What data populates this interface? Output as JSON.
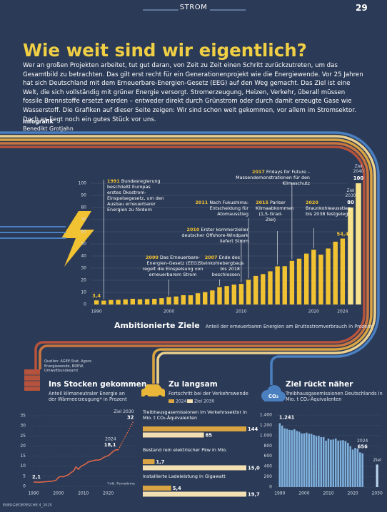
{
  "header": {
    "section": "STROM",
    "page": "29"
  },
  "title": "Wie weit sind wir eigentlich?",
  "intro": "Wer an großen Projekten arbeitet, tut gut daran, von Zeit zu Zeit einen Schritt zurückzutreten, um das Gesamtbild zu betrachten. Das gilt erst recht für ein Generationenprojekt wie die Energiewende. Vor 25 Jahren hat sich Deutschland mit dem Erneuerbare-Energien-Gesetz (EEG) auf den Weg gemacht. Das Ziel ist eine Welt, die sich vollständig mit grüner Energie versorgt. Stromerzeugung, Heizen, Verkehr, überall müssen fossile Brennstoffe ersetzt werden – entweder direkt durch Grünstrom oder durch damit erzeugte Gase wie Wasserstoff. Die Grafiken auf dieser Seite zeigen: Wir sind schon weit gekommen, vor allem im Stromsektor. Doch es liegt noch ein gutes Stück vor uns.",
  "credit": {
    "label": "Infografik",
    "author": "Benedikt Grotjahn"
  },
  "sources": "Quellen: AGEE-Stat, Agora Energiewende, BDEW, Umweltbundesamt",
  "footer": "ENERGIEDEPESCHE 4_2025",
  "chart_data": [
    {
      "type": "bar",
      "title": "Ambitionierte Ziele",
      "subtitle": "Anteil der erneuerbaren Energien am Bruttostromverbrauch in Prozent",
      "x": [
        1990,
        1991,
        1992,
        1993,
        1994,
        1995,
        1996,
        1997,
        1998,
        1999,
        2000,
        2001,
        2002,
        2003,
        2004,
        2005,
        2006,
        2007,
        2008,
        2009,
        2010,
        2011,
        2012,
        2013,
        2014,
        2015,
        2016,
        2017,
        2018,
        2019,
        2020,
        2021,
        2022,
        2023,
        2024
      ],
      "values": [
        3.4,
        3.2,
        3.7,
        3.8,
        4.2,
        4.7,
        4.3,
        4.5,
        4.7,
        5.2,
        6.2,
        6.6,
        7.7,
        7.6,
        9.3,
        10.2,
        11.6,
        14.3,
        15.2,
        16.4,
        17.0,
        20.4,
        23.6,
        25.1,
        27.4,
        31.5,
        31.6,
        36.0,
        37.8,
        42.0,
        45.2,
        41.1,
        46.2,
        51.8,
        54.4
      ],
      "value_labels": [
        "3,4",
        null,
        null,
        null,
        null,
        null,
        null,
        null,
        null,
        null,
        null,
        null,
        null,
        null,
        null,
        null,
        null,
        null,
        null,
        null,
        null,
        null,
        null,
        null,
        null,
        null,
        null,
        null,
        null,
        null,
        null,
        null,
        null,
        null,
        "54,4"
      ],
      "color": "#f1c232",
      "xlim": [
        1989,
        2025
      ],
      "xticks": [
        1990,
        2000,
        2010,
        2020,
        2024
      ],
      "ylim": [
        0,
        100
      ],
      "yticks": [
        0,
        10,
        20,
        30,
        40,
        50,
        60,
        70,
        80,
        90,
        100
      ],
      "grid": true,
      "targets": {
        "categories": [
          "Ziel 2030",
          "Ziel 2040"
        ],
        "values": [
          80,
          100
        ],
        "color": "#f7e38c"
      },
      "annotations": [
        {
          "year": "1991",
          "text": "Bundesregierung beschließt Europas erstes Ökostrom-Einspeisegesetz, um den Ausbau erneuerbarer Energien zu fördern"
        },
        {
          "year": "2000",
          "text": "Das Erneuerbare-Energien-Gesetz (EEG) regelt die Einspeisung von erneuerbarem Strom"
        },
        {
          "year": "2007",
          "text": "Ende des Steinkohlebergbaus bis 2018 beschlossen"
        },
        {
          "year": "2010",
          "text": "Erster kommerzieller deutscher Offshore-Windpark liefert Strom"
        },
        {
          "year": "2011",
          "text": "Nach Fukushima: Entscheidung für Atomausstieg"
        },
        {
          "year": "2015",
          "text": "Pariser Klimaabkommen (1,5-Grad-Ziel)"
        },
        {
          "year": "2017",
          "text": "Fridays for Future – Massendemonstrationen für den Klimaschutz"
        },
        {
          "year": "2020",
          "text": "Braunkohleausstieg bis 2038 festgelegt"
        }
      ]
    },
    {
      "type": "line",
      "title": "Ins Stocken gekommen",
      "subtitle": "Anteil klimaneutraler Energie an der Wärmeerzeugung* in Prozent",
      "note": "*inkl. Fernwärme",
      "x": [
        1990,
        1991,
        1992,
        1993,
        1994,
        1995,
        1996,
        1997,
        1998,
        1999,
        2000,
        2001,
        2002,
        2003,
        2004,
        2005,
        2006,
        2007,
        2008,
        2009,
        2010,
        2011,
        2012,
        2013,
        2014,
        2015,
        2016,
        2017,
        2018,
        2019,
        2020,
        2021,
        2022,
        2023,
        2024
      ],
      "values": [
        2.1,
        2.1,
        2.0,
        2.1,
        2.2,
        2.3,
        2.4,
        2.5,
        2.7,
        3.0,
        4.4,
        4.9,
        4.7,
        5.3,
        5.7,
        6.8,
        7.5,
        9.6,
        8.4,
        9.9,
        10.5,
        11.2,
        12.1,
        12.4,
        12.8,
        13.0,
        13.0,
        13.4,
        14.2,
        14.8,
        15.2,
        16.2,
        17.4,
        18.1,
        18.1
      ],
      "value_labels": [
        "2,1",
        null,
        null,
        null,
        null,
        null,
        null,
        null,
        null,
        null,
        null,
        null,
        null,
        null,
        null,
        null,
        null,
        null,
        null,
        null,
        null,
        null,
        null,
        null,
        null,
        null,
        null,
        null,
        null,
        null,
        null,
        null,
        null,
        null,
        "18,1"
      ],
      "color": "#d9674a",
      "xlim": [
        1988,
        2031
      ],
      "xticks": [
        1990,
        2000,
        2010,
        2020
      ],
      "ylim": [
        0,
        35
      ],
      "yticks": [
        0,
        5,
        10,
        15,
        20,
        25,
        30,
        35
      ],
      "grid": true,
      "target": {
        "label": "Ziel 2030",
        "x": [
          2024,
          2030
        ],
        "values": [
          18.1,
          32
        ]
      }
    },
    {
      "type": "bar",
      "orientation": "horizontal",
      "title": "Zu langsam",
      "subtitle": "Fortschritt bei der Verkehrswende",
      "series": [
        {
          "name": "2024",
          "color": "#d9a441"
        },
        {
          "name": "Ziel 2030",
          "color": "#f2dfb2"
        }
      ],
      "groups": [
        {
          "label": "Treibhausgasemissionen im Verkehrssektor in Mio. t CO₂-Äquivalenten",
          "values": [
            144,
            85
          ]
        },
        {
          "label": "Bestand rein elektrischer Pkw in Mio.",
          "values": [
            1.7,
            15
          ],
          "value_labels": [
            "1,7",
            "15,0"
          ]
        },
        {
          "label": "Installierte Ladeleistung in Gigawatt",
          "values": [
            5.4,
            19.7
          ],
          "value_labels": [
            "5,4",
            "19,7"
          ]
        }
      ]
    },
    {
      "type": "bar",
      "title": "Ziel rückt näher",
      "subtitle": "Treibhausgasemissionen Deutschlands in Mio. t CO₂-Äquivalenten",
      "icon_label": "CO₂",
      "x": [
        1990,
        1991,
        1992,
        1993,
        1994,
        1995,
        1996,
        1997,
        1998,
        1999,
        2000,
        2001,
        2002,
        2003,
        2004,
        2005,
        2006,
        2007,
        2008,
        2009,
        2010,
        2011,
        2012,
        2013,
        2014,
        2015,
        2016,
        2017,
        2018,
        2019,
        2020,
        2021,
        2022,
        2023,
        2024
      ],
      "values": [
        1241,
        1194,
        1142,
        1131,
        1111,
        1106,
        1125,
        1092,
        1076,
        1043,
        1043,
        1058,
        1038,
        1034,
        1013,
        993,
        995,
        970,
        972,
        902,
        940,
        920,
        925,
        943,
        903,
        907,
        910,
        894,
        858,
        794,
        729,
        760,
        748,
        674,
        656
      ],
      "value_labels": [
        "1.241",
        null,
        null,
        null,
        null,
        null,
        null,
        null,
        null,
        null,
        null,
        null,
        null,
        null,
        null,
        null,
        null,
        null,
        null,
        null,
        null,
        null,
        null,
        null,
        null,
        null,
        null,
        null,
        null,
        null,
        null,
        null,
        null,
        null,
        "656"
      ],
      "color": "#7fb0dc",
      "xlim": [
        1988,
        2032
      ],
      "xticks": [
        1990,
        2000,
        2010,
        2020,
        2030
      ],
      "ylim": [
        0,
        1400
      ],
      "yticks": [
        0,
        200,
        400,
        600,
        800,
        {
          "value": 1000,
          "label": "1.000"
        },
        {
          "value": 1200,
          "label": "1.200"
        },
        {
          "value": 1400,
          "label": "1.400"
        }
      ],
      "grid": true,
      "target": {
        "label": "Ziel",
        "x": 2030,
        "value": 438,
        "color": "#b9d4ee"
      }
    }
  ]
}
